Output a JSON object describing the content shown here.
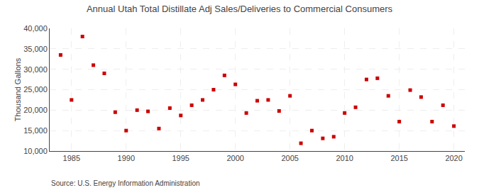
{
  "chart_data": {
    "type": "scatter",
    "title": "Annual Utah Total Distillate Adj Sales/Deliveries to Commercial Consumers",
    "y_label": "Thousand Gallons",
    "annotations": [
      "Source: U.S. Energy Information Administration"
    ],
    "x": [
      1984,
      1985,
      1986,
      1987,
      1988,
      1989,
      1990,
      1991,
      1992,
      1993,
      1994,
      1995,
      1996,
      1997,
      1998,
      1999,
      2000,
      2001,
      2002,
      2003,
      2004,
      2005,
      2006,
      2007,
      2008,
      2009,
      2010,
      2011,
      2012,
      2013,
      2014,
      2015,
      2016,
      2017,
      2018,
      2019,
      2020
    ],
    "values": [
      33500,
      22500,
      38000,
      31000,
      29000,
      19500,
      15000,
      20000,
      19700,
      15500,
      20500,
      18700,
      21200,
      22500,
      25000,
      28500,
      26300,
      19300,
      22300,
      22500,
      19800,
      23500,
      11900,
      15000,
      13100,
      13500,
      19300,
      20700,
      27500,
      27800,
      23500,
      17200,
      24900,
      23200,
      17200,
      21200,
      16100
    ],
    "color": "#cc0000",
    "marker": "square",
    "xlim": [
      1983,
      2021
    ],
    "ylim": [
      10000,
      40000
    ],
    "xticks": [
      1985,
      1990,
      1995,
      2000,
      2005,
      2010,
      2015,
      2020
    ],
    "yticks": [
      {
        "value": 10000,
        "label": "10,000"
      },
      {
        "value": 15000,
        "label": "15,000"
      },
      {
        "value": 20000,
        "label": "20,000"
      },
      {
        "value": 25000,
        "label": "25,000"
      },
      {
        "value": 30000,
        "label": "30,000"
      },
      {
        "value": 35000,
        "label": "35,000"
      },
      {
        "value": 40000,
        "label": "40,000"
      }
    ],
    "grid": true
  }
}
